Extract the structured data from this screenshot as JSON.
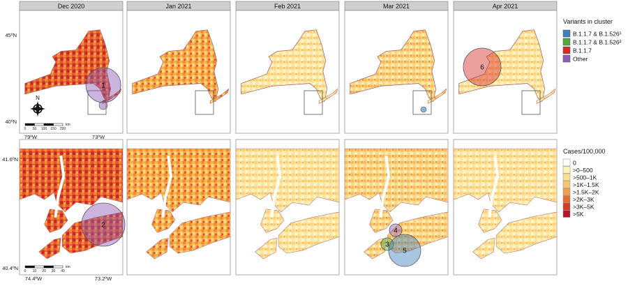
{
  "months": [
    "Dec 2020",
    "Jan 2021",
    "Feb 2021",
    "Mar 2021",
    "Apr 2021"
  ],
  "top_row": {
    "lat_labels": [
      "45ºN",
      "40ºN"
    ],
    "lon_labels": [
      "79ºW",
      "73ºW"
    ],
    "north_label": "N",
    "scale_ticks": [
      "0",
      "50",
      "100",
      "150",
      "200"
    ],
    "scale_unit": "km"
  },
  "bottom_row": {
    "lat_labels": [
      "41.6ºN",
      "40.4ºN"
    ],
    "lon_labels": [
      "74.4ºW",
      "73.2ºW"
    ],
    "scale_ticks": [
      "0",
      "10",
      "20",
      "30",
      "40"
    ],
    "scale_unit": "km"
  },
  "clusters": [
    {
      "id": "1",
      "month": "Dec 2020",
      "row": "top",
      "variant": "Other"
    },
    {
      "id": "2",
      "month": "Dec 2020",
      "row": "bottom",
      "variant": "Other"
    },
    {
      "id": "3",
      "month": "Mar 2021",
      "row": "bottom",
      "variant": "B.1.1.7 & B.1.526²"
    },
    {
      "id": "4",
      "month": "Mar 2021",
      "row": "bottom",
      "variant": "Other"
    },
    {
      "id": "5",
      "month": "Mar 2021",
      "row": "bottom",
      "variant": "B.1.1.7 & B.1.526¹"
    },
    {
      "id": "6",
      "month": "Apr 2021",
      "row": "top",
      "variant": "B.1.1.7"
    }
  ],
  "legend_variants": {
    "title": "Variants in cluster",
    "items": [
      {
        "label": "B.1.1.7 & B.1.526¹",
        "color": "#3f7fbf"
      },
      {
        "label": "B.1.1.7 & B.1.526²",
        "color": "#4fa83d"
      },
      {
        "label": "B.1.1.7",
        "color": "#d42a2a"
      },
      {
        "label": "Other",
        "color": "#8c5bb5"
      }
    ]
  },
  "legend_cases": {
    "title": "Cases/100,000",
    "items": [
      {
        "label": "0",
        "color": "#ffffff"
      },
      {
        "label": ">0–500",
        "color": "#fdf3b5"
      },
      {
        "label": ">500–1K",
        "color": "#fbe08e"
      },
      {
        "label": ">1K–1.5K",
        "color": "#f9c66b"
      },
      {
        "label": ">1.5K–2K",
        "color": "#f3a04a"
      },
      {
        "label": ">2K–3K",
        "color": "#e96a2c"
      },
      {
        "label": ">3K–5K",
        "color": "#d63a24"
      },
      {
        "label": ">5K",
        "color": "#b3152a"
      }
    ]
  }
}
